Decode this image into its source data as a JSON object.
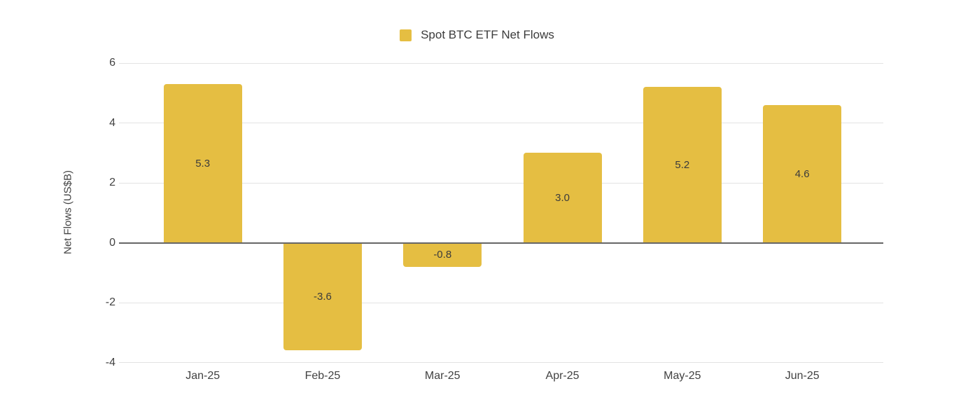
{
  "chart_data": {
    "type": "bar",
    "title": "Spot BTC ETF Net Flows",
    "series_name": "Spot BTC ETF Net Flows",
    "categories": [
      "Jan-25",
      "Feb-25",
      "Mar-25",
      "Apr-25",
      "May-25",
      "Jun-25"
    ],
    "values": [
      5.3,
      -3.6,
      -0.8,
      3.0,
      5.2,
      4.6
    ],
    "value_labels": [
      "5.3",
      "-3.6",
      "-0.8",
      "3.0",
      "5.2",
      "4.6"
    ],
    "xlabel": "",
    "ylabel": "Net Flows (US$B)",
    "ylim": [
      -4,
      6
    ],
    "yticks": [
      6,
      4,
      2,
      0,
      -2,
      -4
    ],
    "grid": true,
    "legend_position": "top",
    "colors": {
      "bar": "#E5BE42",
      "grid": "#E3E3E3",
      "zero_line": "#666666",
      "axis_text": "#424242",
      "value_text": "#3B3B3B",
      "background": "#FFFFFF"
    }
  }
}
